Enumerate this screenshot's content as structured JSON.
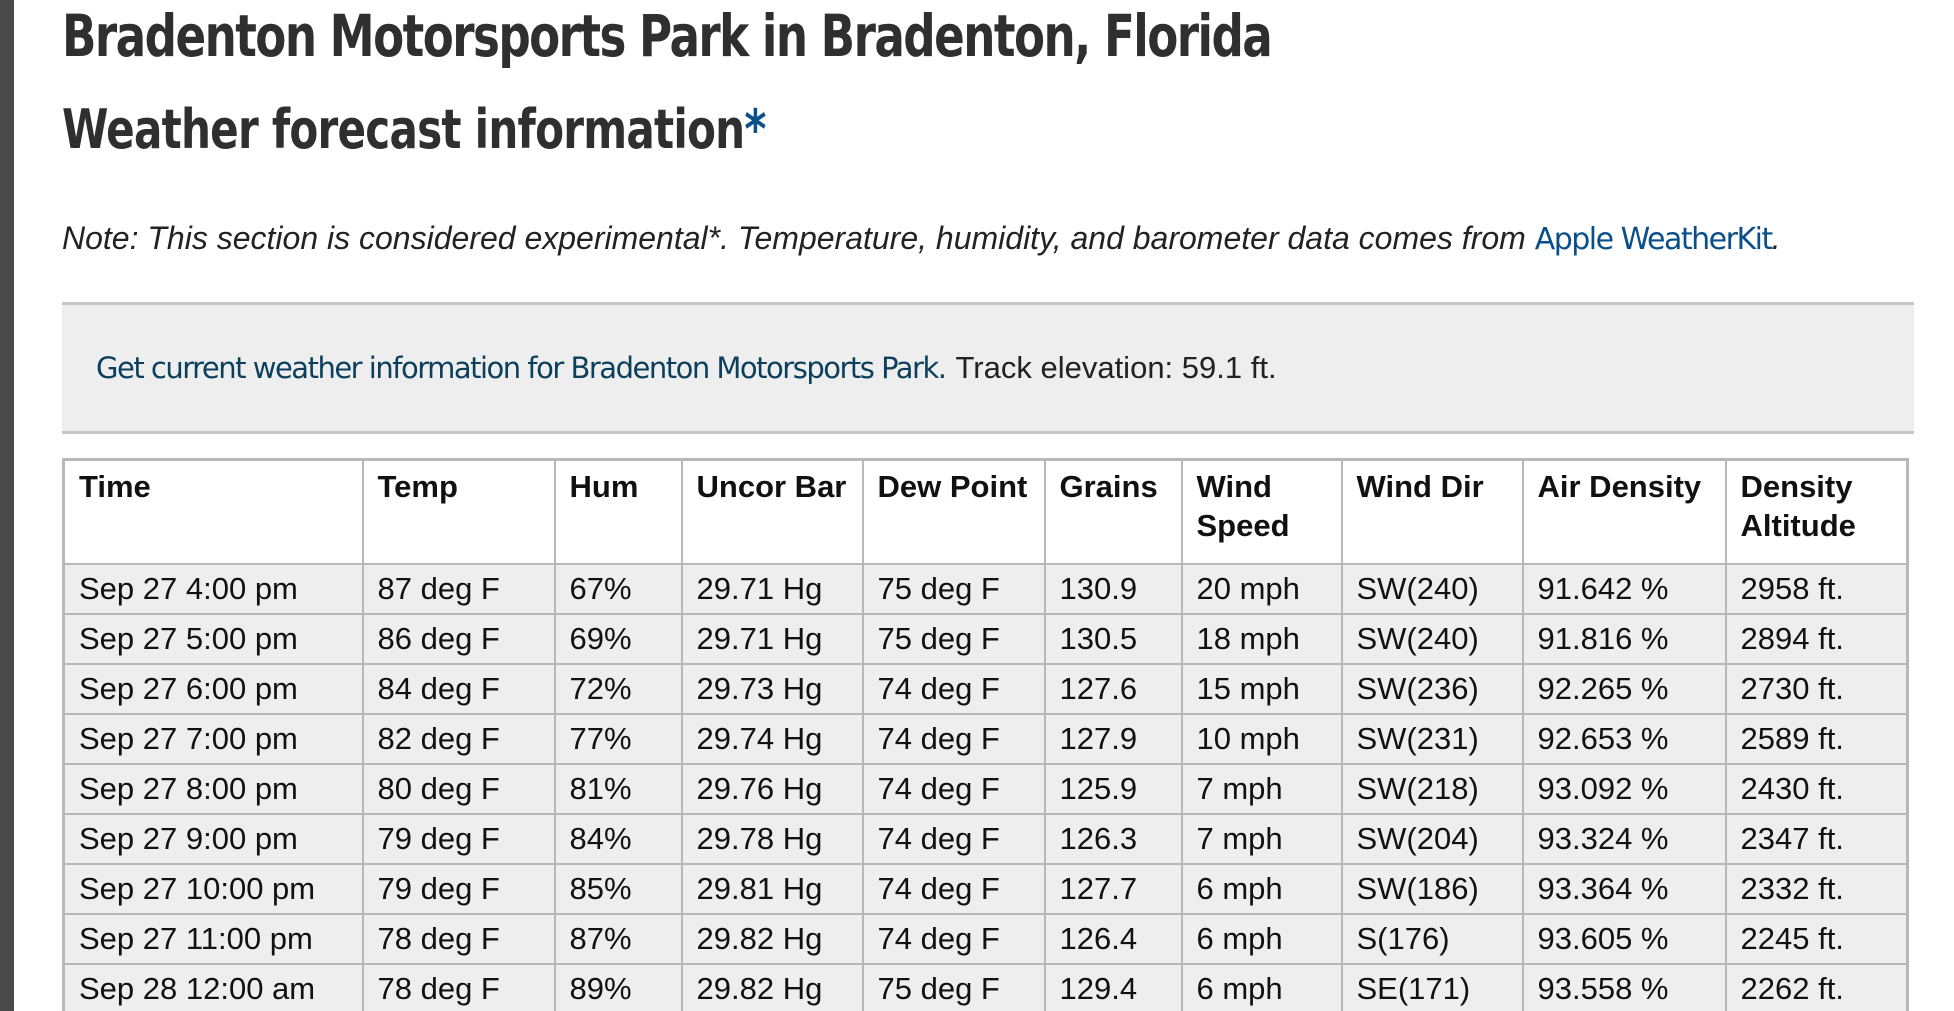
{
  "header": {
    "title": "Bradenton Motorsports Park in Bradenton, Florida",
    "subtitle": "Weather forecast information",
    "subtitle_star": "*"
  },
  "note": {
    "text": "Note: This section is considered experimental*. Temperature, humidity, and barometer data comes from ",
    "link": "Apple WeatherKit",
    "tail": "."
  },
  "infobox": {
    "link": "Get current weather information for Bradenton Motorsports Park.",
    "elevation": "Track elevation: 59.1 ft."
  },
  "table": {
    "headers": [
      "Time",
      "Temp",
      "Hum",
      "Uncor Bar",
      "Dew Point",
      "Grains",
      "Wind Speed",
      "Wind Dir",
      "Air Density",
      "Density Altitude"
    ],
    "rows": [
      [
        "Sep 27 4:00 pm",
        "87 deg F",
        "67%",
        "29.71 Hg",
        "75 deg F",
        "130.9",
        "20 mph",
        "SW(240)",
        "91.642 %",
        "2958 ft."
      ],
      [
        "Sep 27 5:00 pm",
        "86 deg F",
        "69%",
        "29.71 Hg",
        "75 deg F",
        "130.5",
        "18 mph",
        "SW(240)",
        "91.816 %",
        "2894 ft."
      ],
      [
        "Sep 27 6:00 pm",
        "84 deg F",
        "72%",
        "29.73 Hg",
        "74 deg F",
        "127.6",
        "15 mph",
        "SW(236)",
        "92.265 %",
        "2730 ft."
      ],
      [
        "Sep 27 7:00 pm",
        "82 deg F",
        "77%",
        "29.74 Hg",
        "74 deg F",
        "127.9",
        "10 mph",
        "SW(231)",
        "92.653 %",
        "2589 ft."
      ],
      [
        "Sep 27 8:00 pm",
        "80 deg F",
        "81%",
        "29.76 Hg",
        "74 deg F",
        "125.9",
        "7 mph",
        "SW(218)",
        "93.092 %",
        "2430 ft."
      ],
      [
        "Sep 27 9:00 pm",
        "79 deg F",
        "84%",
        "29.78 Hg",
        "74 deg F",
        "126.3",
        "7 mph",
        "SW(204)",
        "93.324 %",
        "2347 ft."
      ],
      [
        "Sep 27 10:00 pm",
        "79 deg F",
        "85%",
        "29.81 Hg",
        "74 deg F",
        "127.7",
        "6 mph",
        "SW(186)",
        "93.364 %",
        "2332 ft."
      ],
      [
        "Sep 27 11:00 pm",
        "78 deg F",
        "87%",
        "29.82 Hg",
        "74 deg F",
        "126.4",
        "6 mph",
        "S(176)",
        "93.605 %",
        "2245 ft."
      ],
      [
        "Sep 28 12:00 am",
        "78 deg F",
        "89%",
        "29.82 Hg",
        "75 deg F",
        "129.4",
        "6 mph",
        "SE(171)",
        "93.558 %",
        "2262 ft."
      ]
    ]
  }
}
